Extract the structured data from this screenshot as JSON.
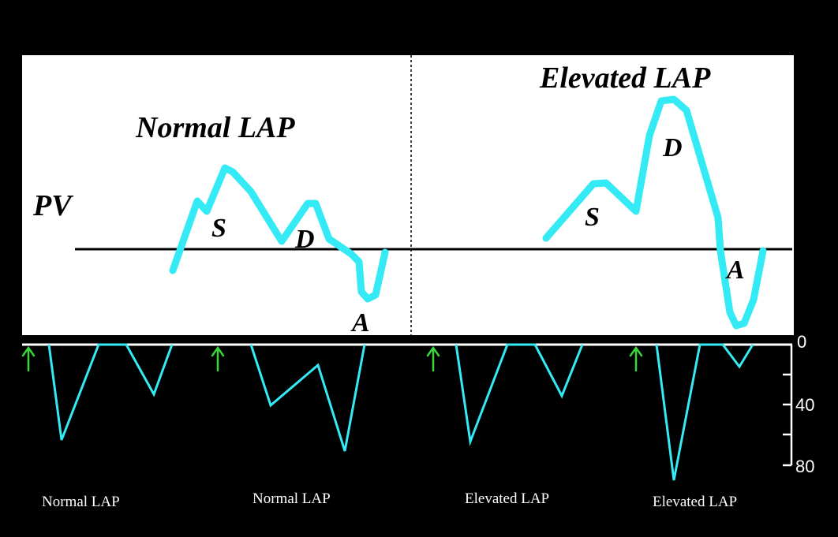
{
  "colors": {
    "background": "#000000",
    "panel": "#ffffff",
    "waveform": "#33eaf5",
    "trigger_arrow": "#39d63c",
    "baseline": "#000000"
  },
  "upper_panel": {
    "row_label": "PV",
    "normal": {
      "title": "Normal LAP",
      "labels": {
        "s": "S",
        "d": "D",
        "a": "A"
      }
    },
    "elevated": {
      "title": "Elevated LAP",
      "labels": {
        "s": "S",
        "d": "D",
        "a": "A"
      }
    }
  },
  "lower_panel": {
    "scale": {
      "ticks": [
        "0",
        "40",
        "80"
      ]
    },
    "captions": [
      "Normal LAP",
      "Normal LAP",
      "Elevated LAP",
      "Elevated LAP"
    ],
    "trigger_icon": "up-arrow-icon"
  }
}
